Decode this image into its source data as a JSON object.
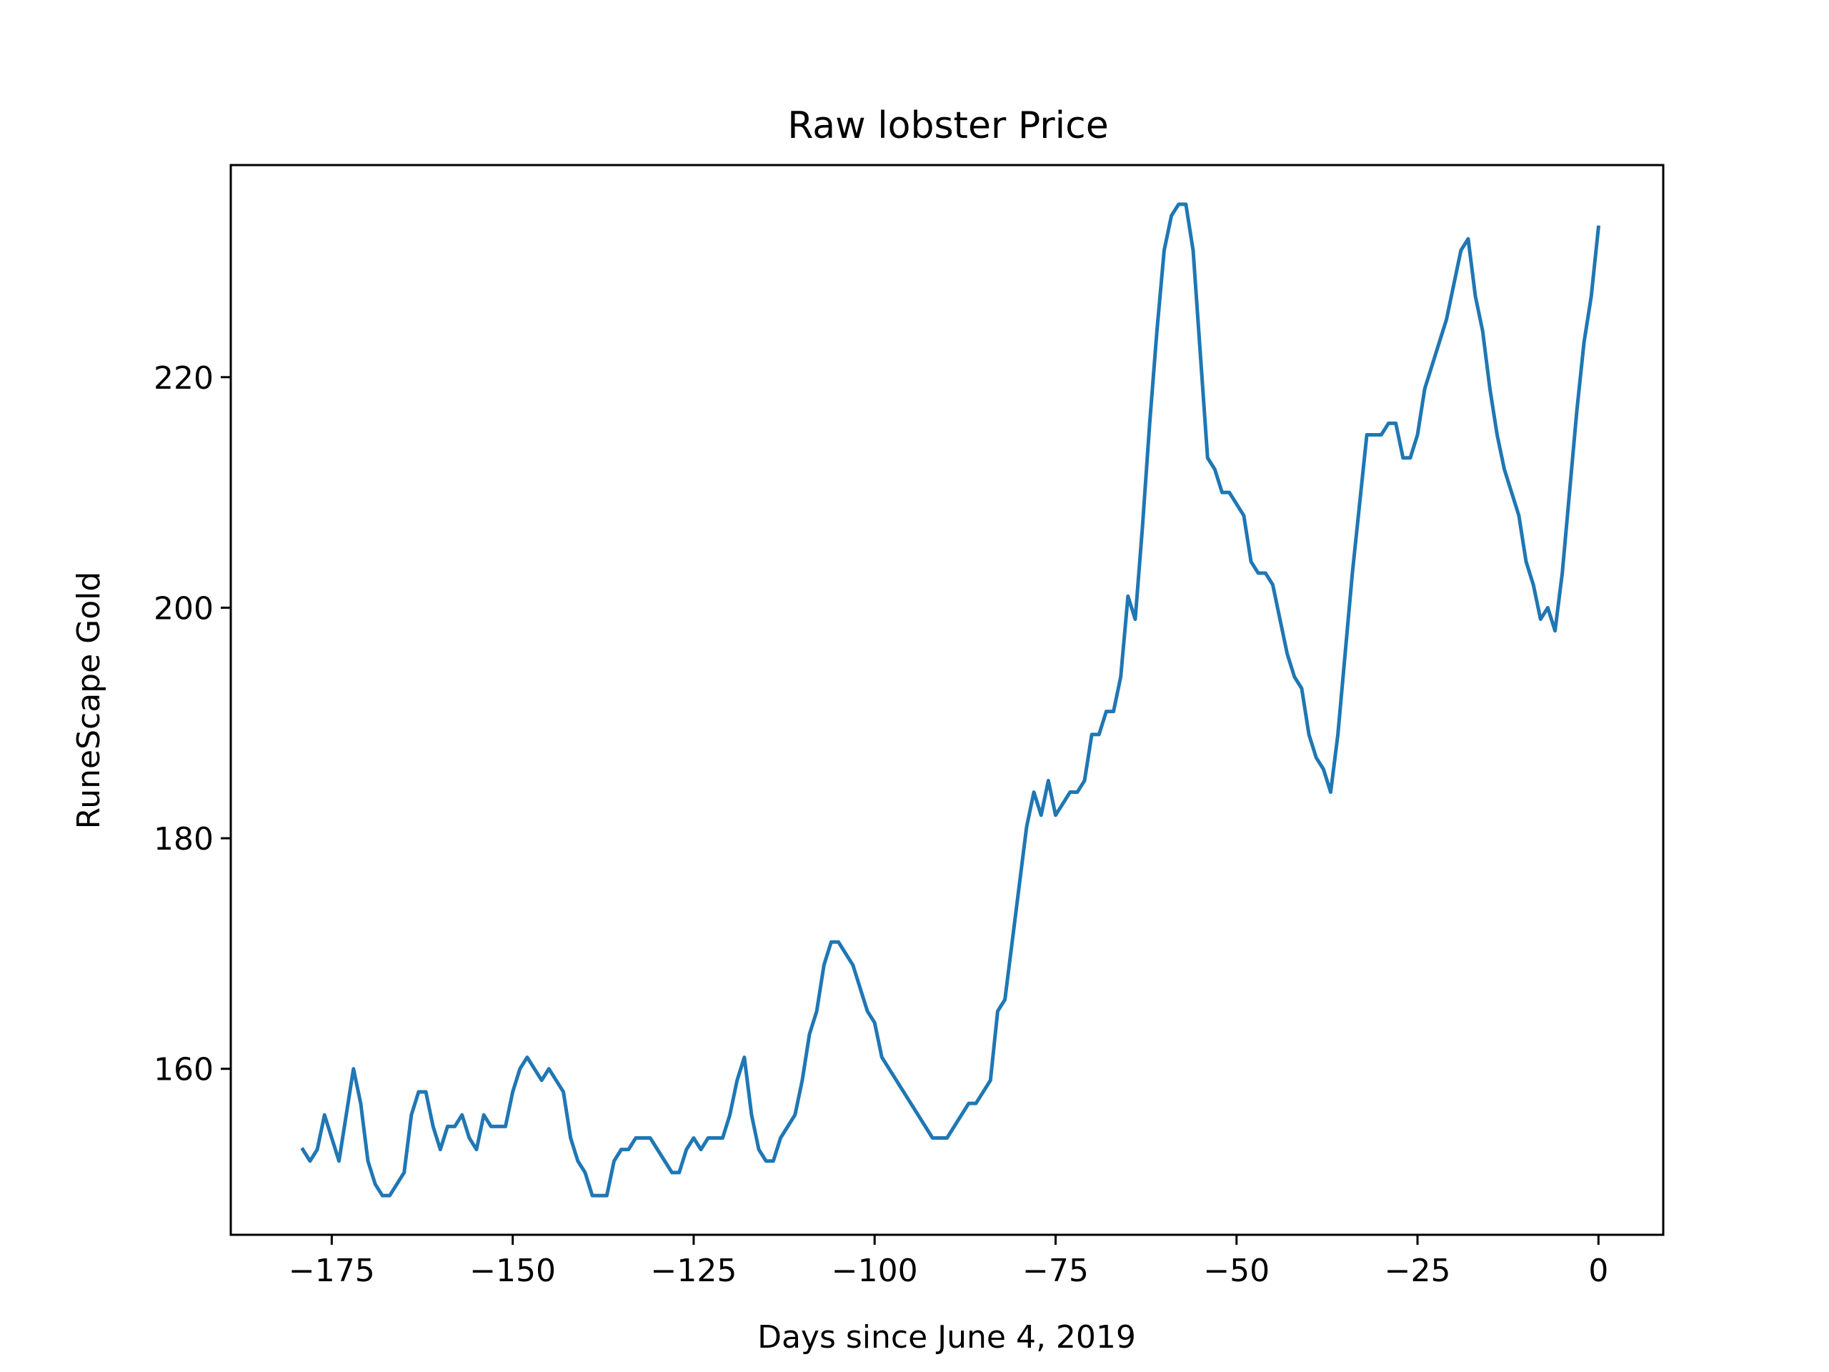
{
  "chart_data": {
    "type": "line",
    "title": "Raw lobster Price",
    "xlabel": "Days since June 4, 2019",
    "ylabel": "RuneScape Gold",
    "xlim": [
      -188.95,
      8.95
    ],
    "ylim": [
      145.6,
      238.4
    ],
    "x_ticks": [
      -175,
      -150,
      -125,
      -100,
      -75,
      -50,
      -25,
      0
    ],
    "x_tick_labels": [
      "−175",
      "−150",
      "−125",
      "−100",
      "−75",
      "−50",
      "−25",
      "0"
    ],
    "y_ticks": [
      160,
      180,
      200,
      220
    ],
    "y_tick_labels": [
      "160",
      "180",
      "200",
      "220"
    ],
    "grid": false,
    "legend": false,
    "series": [
      {
        "color": "#1f77b4",
        "x": [
          -179,
          -178,
          -177,
          -176,
          -175,
          -174,
          -173,
          -172,
          -171,
          -170,
          -169,
          -168,
          -167,
          -166,
          -165,
          -164,
          -163,
          -162,
          -161,
          -160,
          -159,
          -158,
          -157,
          -156,
          -155,
          -154,
          -153,
          -152,
          -151,
          -150,
          -149,
          -148,
          -147,
          -146,
          -145,
          -144,
          -143,
          -142,
          -141,
          -140,
          -139,
          -138,
          -137,
          -136,
          -135,
          -134,
          -133,
          -132,
          -131,
          -130,
          -129,
          -128,
          -127,
          -126,
          -125,
          -124,
          -123,
          -122,
          -121,
          -120,
          -119,
          -118,
          -117,
          -116,
          -115,
          -114,
          -113,
          -112,
          -111,
          -110,
          -109,
          -108,
          -107,
          -106,
          -105,
          -104,
          -103,
          -102,
          -101,
          -100,
          -99,
          -98,
          -97,
          -96,
          -95,
          -94,
          -93,
          -92,
          -91,
          -90,
          -89,
          -88,
          -87,
          -86,
          -85,
          -84,
          -83,
          -82,
          -81,
          -80,
          -79,
          -78,
          -77,
          -76,
          -75,
          -74,
          -73,
          -72,
          -71,
          -70,
          -69,
          -68,
          -67,
          -66,
          -65,
          -64,
          -63,
          -62,
          -61,
          -60,
          -59,
          -58,
          -57,
          -56,
          -55,
          -54,
          -53,
          -52,
          -51,
          -50,
          -49,
          -48,
          -47,
          -46,
          -45,
          -44,
          -43,
          -42,
          -41,
          -40,
          -39,
          -38,
          -37,
          -36,
          -35,
          -34,
          -33,
          -32,
          -31,
          -30,
          -29,
          -28,
          -27,
          -26,
          -25,
          -24,
          -23,
          -22,
          -21,
          -20,
          -19,
          -18,
          -17,
          -16,
          -15,
          -14,
          -13,
          -12,
          -11,
          -10,
          -9,
          -8,
          -7,
          -6,
          -5,
          -4,
          -3,
          -2,
          -1,
          0
        ],
        "values": [
          153,
          152,
          153,
          156,
          154,
          152,
          156,
          160,
          157,
          152,
          150,
          149,
          149,
          150,
          151,
          156,
          158,
          158,
          155,
          153,
          155,
          155,
          156,
          154,
          153,
          156,
          155,
          155,
          155,
          158,
          160,
          161,
          160,
          159,
          160,
          159,
          158,
          154,
          152,
          151,
          149,
          149,
          149,
          152,
          153,
          153,
          154,
          154,
          154,
          153,
          152,
          151,
          151,
          153,
          154,
          153,
          154,
          154,
          154,
          156,
          159,
          161,
          156,
          153,
          152,
          152,
          154,
          155,
          156,
          159,
          163,
          165,
          169,
          171,
          171,
          170,
          169,
          167,
          165,
          164,
          161,
          160,
          159,
          158,
          157,
          156,
          155,
          154,
          154,
          154,
          155,
          156,
          157,
          157,
          158,
          159,
          165,
          166,
          171,
          176,
          181,
          184,
          182,
          185,
          182,
          183,
          184,
          184,
          185,
          189,
          189,
          191,
          191,
          194,
          201,
          199,
          207,
          216,
          224,
          231,
          234,
          235,
          235,
          231,
          222,
          213,
          212,
          210,
          210,
          209,
          208,
          204,
          203,
          203,
          202,
          199,
          196,
          194,
          193,
          189,
          187,
          186,
          184,
          189,
          196,
          203,
          209,
          215,
          215,
          215,
          216,
          216,
          213,
          213,
          215,
          219,
          221,
          223,
          225,
          228,
          231,
          232,
          227,
          224,
          219,
          215,
          212,
          210,
          208,
          204,
          202,
          199,
          200,
          198,
          203,
          210,
          217,
          223,
          227,
          233
        ]
      }
    ]
  }
}
